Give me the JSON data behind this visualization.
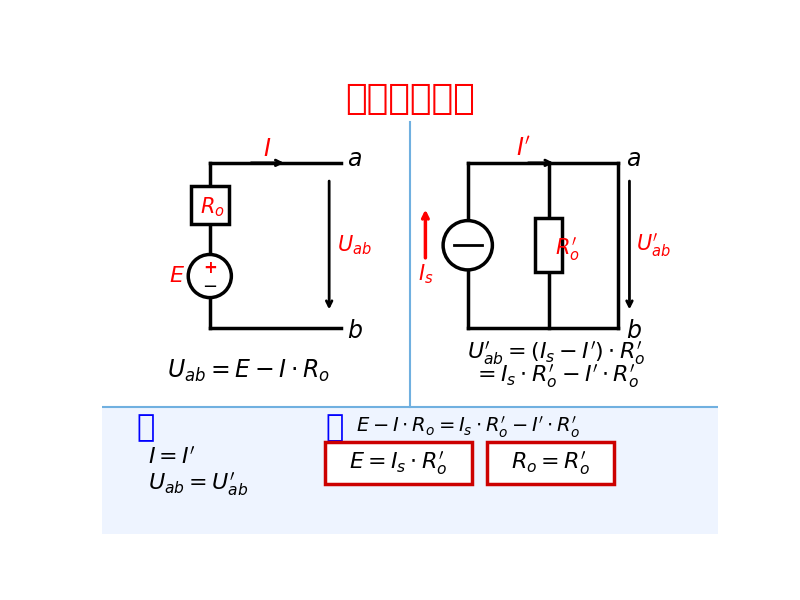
{
  "title": "等效互换公式",
  "title_color": "#FF0000",
  "bg_color": "#FFFFFF",
  "divider_color": "#70B0E0",
  "bottom_bg_color": "#EEF4FF",
  "box_color": "#CC0000",
  "ruo": "若",
  "ze": "则"
}
